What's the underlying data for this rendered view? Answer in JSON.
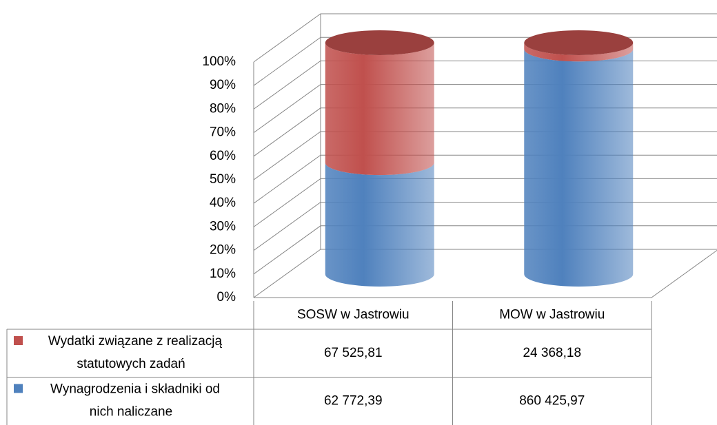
{
  "chart_data": {
    "type": "bar",
    "stacking": "percent",
    "shape": "cylinder",
    "categories": [
      "SOSW w Jastrowiu",
      "MOW w Jastrowiu"
    ],
    "series": [
      {
        "name": "Wynagrodzenia i składniki od nich naliczane",
        "color": "#4f81bd",
        "values": [
          62772.39,
          860425.97
        ],
        "value_labels": [
          "62 772,39",
          "860 425,97"
        ]
      },
      {
        "name": "Wydatki związane z realizacją statutowych zadań",
        "color": "#c0504d",
        "values": [
          67525.81,
          24368.18
        ],
        "value_labels": [
          "67 525,81",
          "24 368,18"
        ]
      }
    ],
    "ylim": [
      0,
      100
    ],
    "yticks": [
      {
        "value": 0,
        "label": "0%"
      },
      {
        "value": 10,
        "label": "10%"
      },
      {
        "value": 20,
        "label": "20%"
      },
      {
        "value": 30,
        "label": "30%"
      },
      {
        "value": 40,
        "label": "40%"
      },
      {
        "value": 50,
        "label": "50%"
      },
      {
        "value": 60,
        "label": "60%"
      },
      {
        "value": 70,
        "label": "70%"
      },
      {
        "value": 80,
        "label": "80%"
      },
      {
        "value": 90,
        "label": "90%"
      },
      {
        "value": 100,
        "label": "100%"
      }
    ],
    "grid": true,
    "data_table": true
  }
}
